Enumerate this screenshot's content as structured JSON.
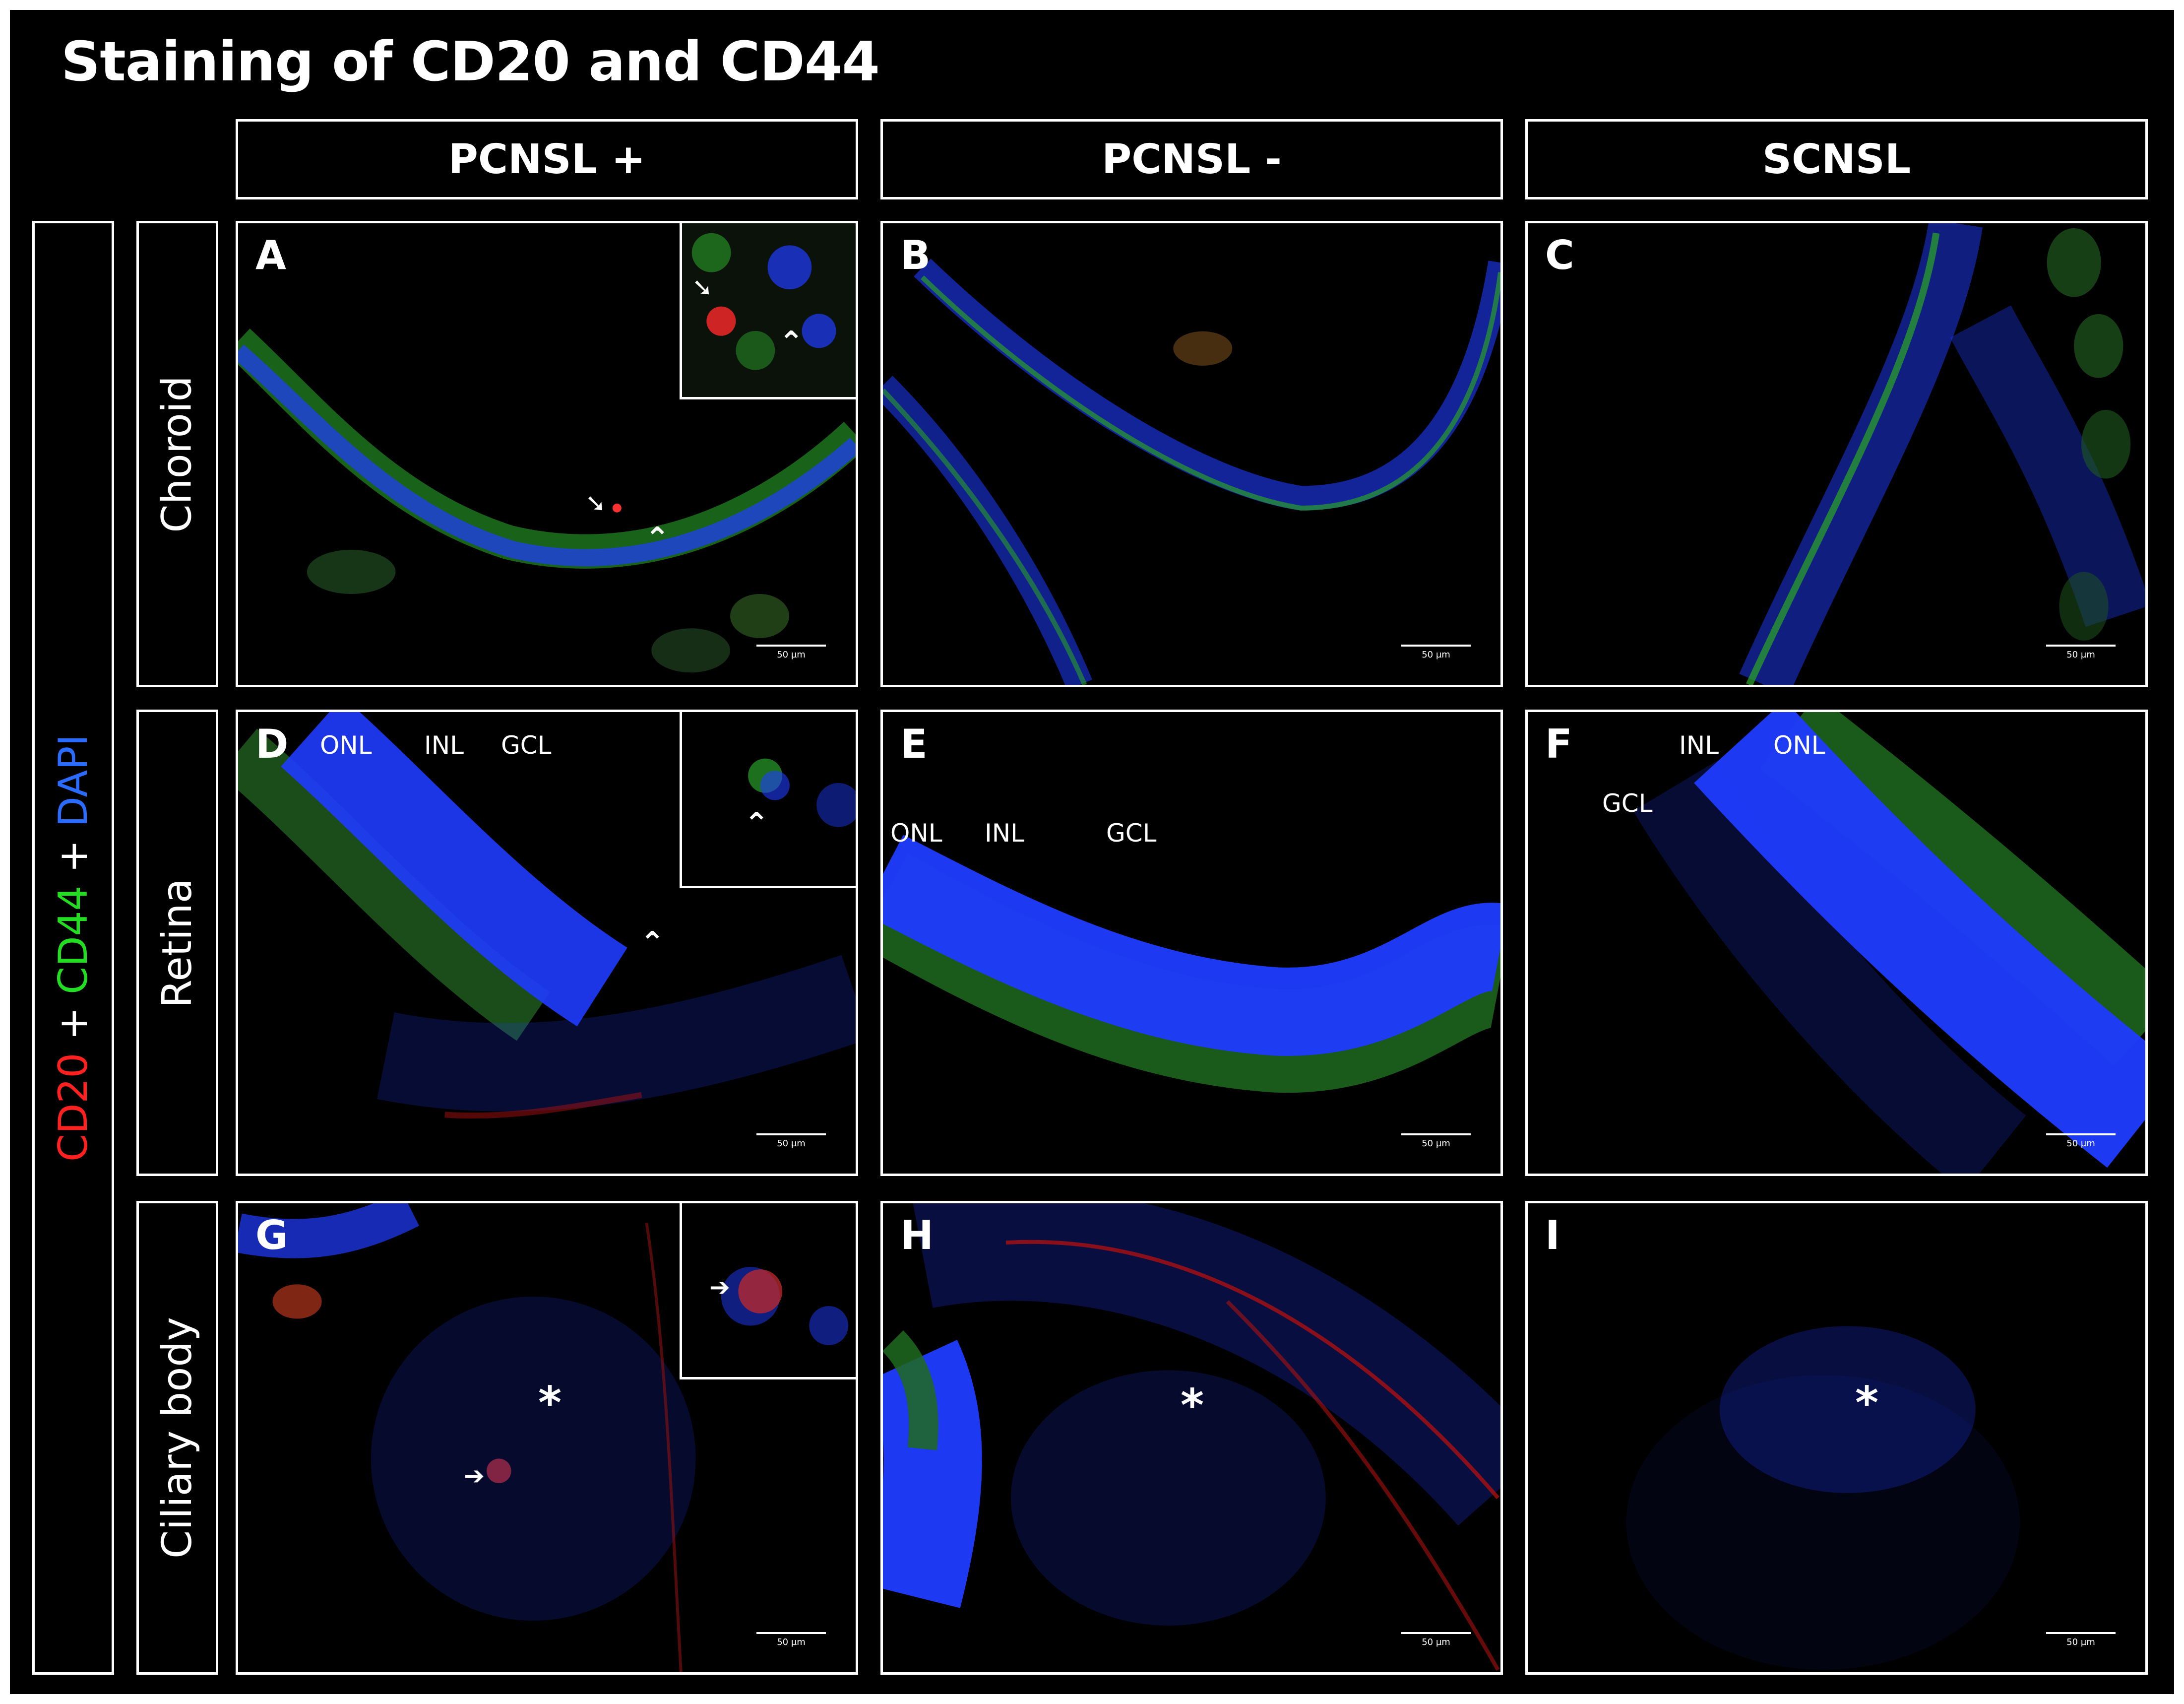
{
  "title": "Staining of CD20 and CD44",
  "stain_legend": {
    "parts": [
      {
        "text": "CD20",
        "color": "#ff2020"
      },
      {
        "text": " + ",
        "color": "#ffffff"
      },
      {
        "text": "CD44",
        "color": "#22dd22"
      },
      {
        "text": " + ",
        "color": "#ffffff"
      },
      {
        "text": "DAPI",
        "color": "#2a6cff"
      }
    ]
  },
  "columns": [
    "PCNSL +",
    "PCNSL -",
    "SCNSL"
  ],
  "rows": [
    "Choroid",
    "Retina",
    "Ciliary body"
  ],
  "panels": [
    {
      "label": "A",
      "scale": "50 µm"
    },
    {
      "label": "B",
      "scale": "50 µm"
    },
    {
      "label": "C",
      "scale": "50 µm"
    },
    {
      "label": "D",
      "scale": "50 µm",
      "layers": [
        "ONL",
        "INL",
        "GCL"
      ]
    },
    {
      "label": "E",
      "scale": "50 µm",
      "layers": [
        "ONL",
        "INL",
        "GCL"
      ]
    },
    {
      "label": "F",
      "scale": "50 µm",
      "layers": [
        "INL",
        "ONL",
        "GCL"
      ]
    },
    {
      "label": "G",
      "scale": "50 µm",
      "asterisk": "*"
    },
    {
      "label": "H",
      "scale": "50 µm",
      "asterisk": "*"
    },
    {
      "label": "I",
      "scale": "50 µm",
      "asterisk": "*"
    }
  ],
  "colors": {
    "cd20": "#ff2020",
    "cd44": "#22cc22",
    "dapi": "#1f3cff",
    "background": "#000000"
  }
}
